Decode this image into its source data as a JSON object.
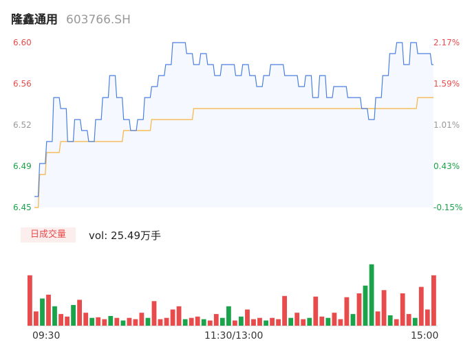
{
  "header": {
    "name": "隆鑫通用",
    "code": "603766.SH"
  },
  "chart_data": {
    "type": "line",
    "price_axis": {
      "ticks": [
        "6.60",
        "6.56",
        "6.52",
        "6.49",
        "6.45"
      ],
      "ylim": [
        6.45,
        6.6
      ]
    },
    "percent_axis": {
      "ticks": [
        "2.17%",
        "1.59%",
        "1.01%",
        "0.43%",
        "-0.15%"
      ]
    },
    "tick_colors": [
      "#e84b4b",
      "#e84b4b",
      "#999999",
      "#1aa34a",
      "#1aa34a"
    ],
    "x_ticks": [
      "09:30",
      "11:30/13:00",
      "15:00"
    ],
    "price": [
      6.46,
      6.49,
      6.51,
      6.55,
      6.54,
      6.51,
      6.53,
      6.52,
      6.51,
      6.53,
      6.55,
      6.57,
      6.55,
      6.53,
      6.52,
      6.53,
      6.55,
      6.56,
      6.57,
      6.58,
      6.6,
      6.6,
      6.59,
      6.58,
      6.59,
      6.58,
      6.57,
      6.58,
      6.58,
      6.57,
      6.58,
      6.57,
      6.56,
      6.57,
      6.58,
      6.58,
      6.57,
      6.57,
      6.56,
      6.57,
      6.55,
      6.57,
      6.55,
      6.56,
      6.56,
      6.55,
      6.55,
      6.54,
      6.53,
      6.55,
      6.57,
      6.59,
      6.6,
      6.58,
      6.6,
      6.59,
      6.59,
      6.58
    ],
    "avg": [
      6.45,
      6.48,
      6.5,
      6.5,
      6.51,
      6.51,
      6.51,
      6.51,
      6.51,
      6.51,
      6.51,
      6.51,
      6.51,
      6.52,
      6.52,
      6.52,
      6.52,
      6.53,
      6.53,
      6.53,
      6.53,
      6.53,
      6.53,
      6.54,
      6.54,
      6.54,
      6.54,
      6.54,
      6.54,
      6.54,
      6.54,
      6.54,
      6.54,
      6.54,
      6.54,
      6.54,
      6.54,
      6.54,
      6.54,
      6.54,
      6.54,
      6.54,
      6.54,
      6.54,
      6.54,
      6.54,
      6.54,
      6.54,
      6.54,
      6.54,
      6.54,
      6.54,
      6.54,
      6.54,
      6.54,
      6.55,
      6.55,
      6.55
    ],
    "volume_label": "日成交量",
    "volume_text": "vol: 25.49万手",
    "volume": [
      0.78,
      0.22,
      0.42,
      0.48,
      0.3,
      0.18,
      0.14,
      0.32,
      0.4,
      0.2,
      0.12,
      0.13,
      0.1,
      0.15,
      0.12,
      0.08,
      0.12,
      0.1,
      0.2,
      0.12,
      0.38,
      0.1,
      0.12,
      0.25,
      0.3,
      0.1,
      0.12,
      0.14,
      0.1,
      0.08,
      0.18,
      0.12,
      0.3,
      0.08,
      0.14,
      0.25,
      0.1,
      0.12,
      0.08,
      0.12,
      0.1,
      0.46,
      0.12,
      0.2,
      0.1,
      0.12,
      0.45,
      0.14,
      0.12,
      0.2,
      0.1,
      0.44,
      0.18,
      0.5,
      0.62,
      0.95,
      0.22,
      0.55,
      0.16,
      0.1,
      0.5,
      0.18,
      0.12,
      0.6,
      0.25,
      0.78
    ],
    "volume_colors": [
      "r",
      "r",
      "g",
      "r",
      "g",
      "r",
      "r",
      "g",
      "r",
      "r",
      "g",
      "r",
      "r",
      "g",
      "r",
      "g",
      "r",
      "r",
      "r",
      "g",
      "r",
      "r",
      "r",
      "r",
      "r",
      "g",
      "r",
      "r",
      "g",
      "r",
      "r",
      "g",
      "g",
      "r",
      "g",
      "r",
      "r",
      "r",
      "g",
      "r",
      "r",
      "r",
      "g",
      "r",
      "r",
      "g",
      "r",
      "r",
      "g",
      "r",
      "r",
      "r",
      "g",
      "r",
      "g",
      "g",
      "r",
      "r",
      "g",
      "r",
      "r",
      "r",
      "g",
      "r",
      "r",
      "r"
    ]
  }
}
